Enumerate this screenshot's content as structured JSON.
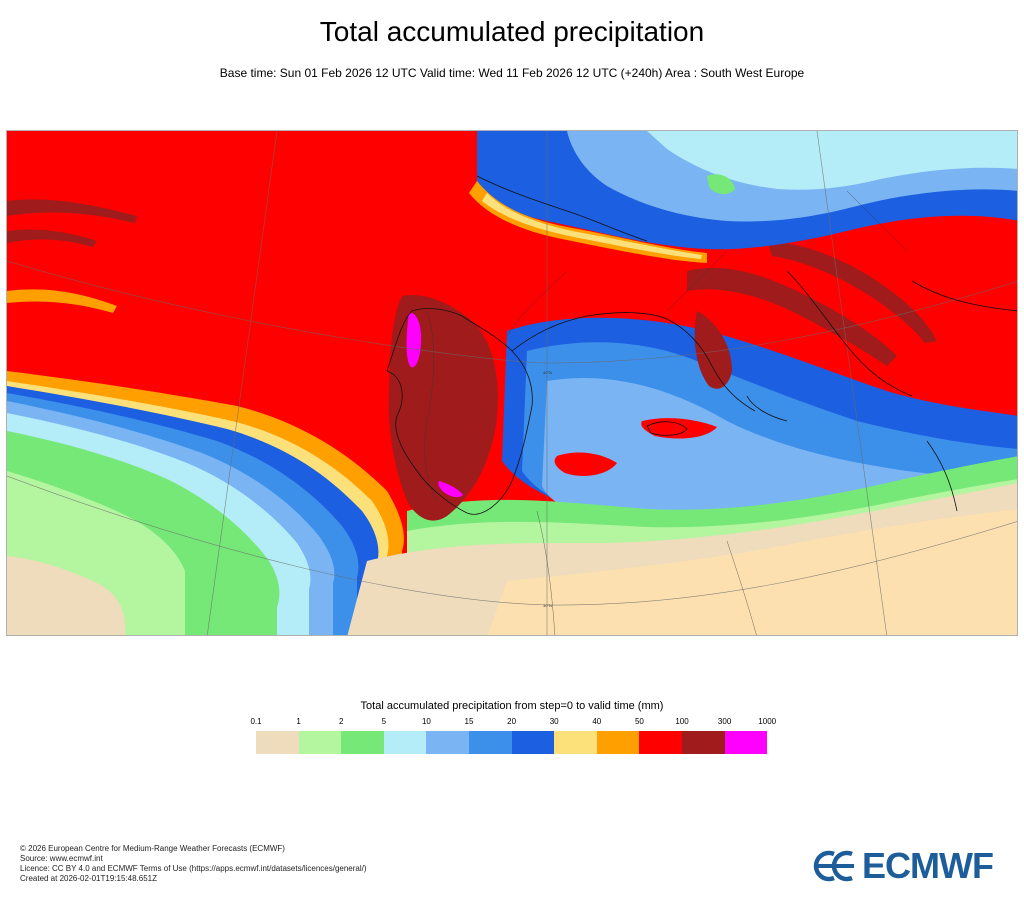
{
  "header": {
    "title": "Total accumulated precipitation",
    "subtitle": "Base time: Sun 01 Feb 2026 12 UTC Valid time: Wed 11 Feb 2026 12 UTC (+240h) Area : South West Europe"
  },
  "map": {
    "lat_labels": [
      "40°N",
      "30°N"
    ]
  },
  "legend": {
    "title": "Total accumulated precipitation from step=0 to valid time (mm)",
    "ticks": [
      "0.1",
      "1",
      "2",
      "5",
      "10",
      "15",
      "20",
      "30",
      "40",
      "50",
      "100",
      "300",
      "1000"
    ],
    "colors": [
      "#eedcbc",
      "#b4f5a0",
      "#76e877",
      "#b4ecf8",
      "#7ab4f3",
      "#3c90ea",
      "#1c5fe0",
      "#fce17a",
      "#ff9f00",
      "#ff0000",
      "#a01c1c",
      "#ff00ff"
    ]
  },
  "footer": {
    "lines": [
      "© 2026 European Centre for Medium-Range Weather Forecasts (ECMWF)",
      "Source: www.ecmwf.int",
      "Licence: CC BY 4.0 and ECMWF Terms of Use (https://apps.ecmwf.int/datasets/licences/general/)",
      "Created at 2026-02-01T19:15:48.651Z"
    ],
    "logo_text": "ECMWF"
  }
}
